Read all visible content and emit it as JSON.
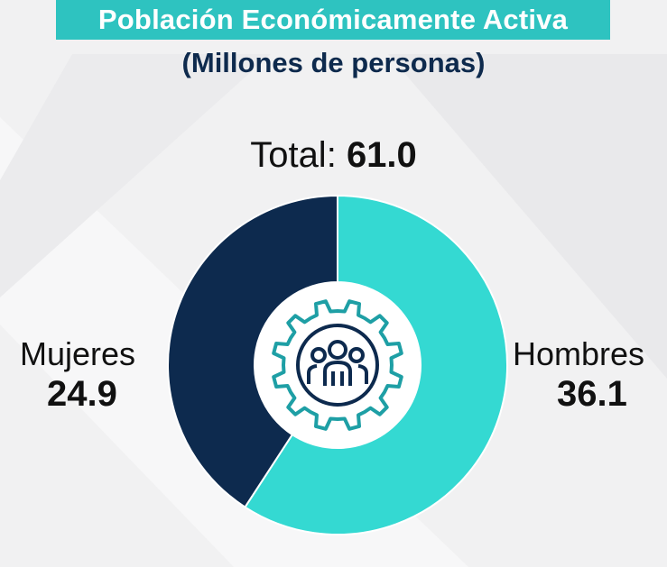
{
  "header": {
    "title": "Población Económicamente Activa",
    "subtitle": "(Millones de personas)"
  },
  "total": {
    "label": "Total:",
    "value": "61.0"
  },
  "center_icon": "people-gear-icon",
  "colors": {
    "hombres": "#34d9d2",
    "mujeres": "#0d2a4e",
    "title_band": "#2ec3c0",
    "icon": "#1e9fa5"
  },
  "chart_data": {
    "type": "pie",
    "variant": "donut",
    "title": "Población Económicamente Activa",
    "subtitle": "(Millones de personas)",
    "total": 61.0,
    "categories": [
      "Hombres",
      "Mujeres"
    ],
    "values": [
      36.1,
      24.9
    ],
    "labels": [
      "36.1",
      "24.9"
    ]
  }
}
